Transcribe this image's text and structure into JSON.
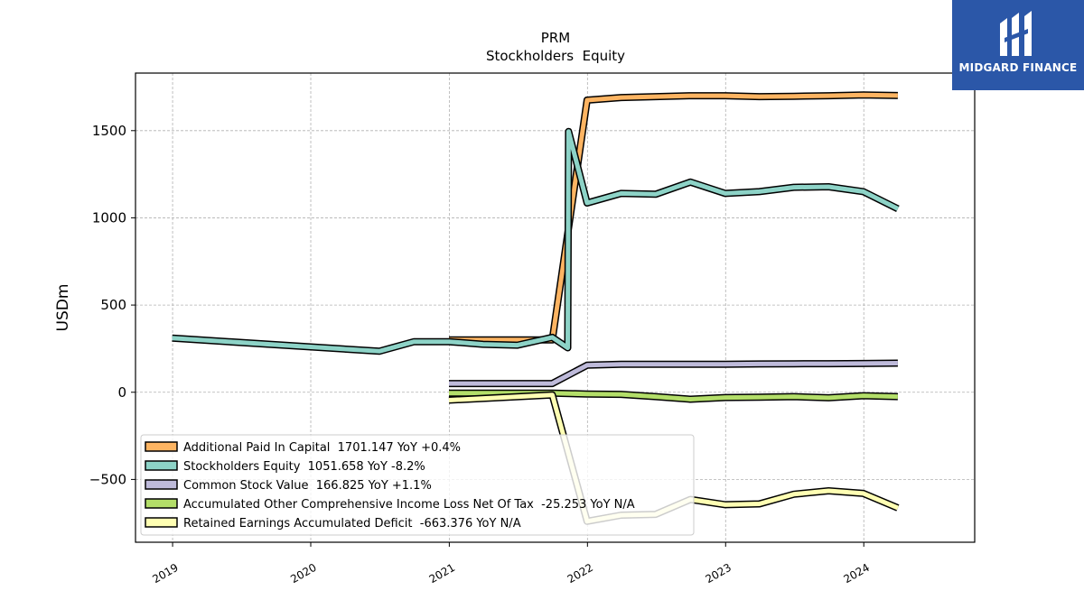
{
  "brand": {
    "name": "MIDGARD FINANCE",
    "logo_color": "#2b57a8"
  },
  "chart_data": {
    "type": "line",
    "title": "PRM",
    "subtitle": "Stockholders  Equity",
    "xlabel": "",
    "ylabel": "USDm",
    "ylim": [
      -860,
      1830
    ],
    "xlim": [
      "2018-09-25",
      "2024-10-20"
    ],
    "grid": true,
    "legend_position": "bottom-left",
    "x_ticks": [
      "2019",
      "2020",
      "2021",
      "2022",
      "2023",
      "2024"
    ],
    "y_ticks": [
      -500,
      0,
      500,
      1000,
      1500
    ],
    "series": [
      {
        "name": "Additional Paid In Capital  1701.147 YoY +0.4%",
        "color": "#fdb462",
        "points": [
          [
            "2020-12-31",
            300
          ],
          [
            "2021-09-30",
            300
          ],
          [
            "2021-12-31",
            1675
          ],
          [
            "2022-03-31",
            1690
          ],
          [
            "2022-06-30",
            1695
          ],
          [
            "2022-09-30",
            1700
          ],
          [
            "2022-12-31",
            1700
          ],
          [
            "2023-03-31",
            1695
          ],
          [
            "2023-06-30",
            1697
          ],
          [
            "2023-09-30",
            1700
          ],
          [
            "2023-12-31",
            1705
          ],
          [
            "2024-03-31",
            1701
          ]
        ]
      },
      {
        "name": "Stockholders Equity  1051.658 YoY -8.2%",
        "color": "#8dd3c7",
        "points": [
          [
            "2018-12-31",
            310
          ],
          [
            "2020-06-30",
            235
          ],
          [
            "2020-09-30",
            290
          ],
          [
            "2020-12-31",
            290
          ],
          [
            "2021-03-31",
            275
          ],
          [
            "2021-06-30",
            270
          ],
          [
            "2021-09-30",
            315
          ],
          [
            "2021-11-10",
            255
          ],
          [
            "2021-11-12",
            1495
          ],
          [
            "2021-12-31",
            1085
          ],
          [
            "2022-03-31",
            1140
          ],
          [
            "2022-06-30",
            1135
          ],
          [
            "2022-09-30",
            1205
          ],
          [
            "2022-12-31",
            1140
          ],
          [
            "2023-03-31",
            1150
          ],
          [
            "2023-06-30",
            1175
          ],
          [
            "2023-09-30",
            1178
          ],
          [
            "2023-12-31",
            1150
          ],
          [
            "2024-03-31",
            1052
          ]
        ]
      },
      {
        "name": "Common Stock Value  166.825 YoY +1.1%",
        "color": "#bebada",
        "points": [
          [
            "2020-12-31",
            50
          ],
          [
            "2021-09-30",
            50
          ],
          [
            "2021-12-31",
            155
          ],
          [
            "2022-03-31",
            160
          ],
          [
            "2022-06-30",
            160
          ],
          [
            "2022-09-30",
            160
          ],
          [
            "2022-12-31",
            160
          ],
          [
            "2023-03-31",
            162
          ],
          [
            "2023-06-30",
            163
          ],
          [
            "2023-09-30",
            164
          ],
          [
            "2023-12-31",
            165
          ],
          [
            "2024-03-31",
            167
          ]
        ]
      },
      {
        "name": "Accumulated Other Comprehensive Income Loss Net Of Tax  -25.253 YoY N/A",
        "color": "#b3de69",
        "points": [
          [
            "2020-12-31",
            -5
          ],
          [
            "2021-09-30",
            -5
          ],
          [
            "2021-12-31",
            -10
          ],
          [
            "2022-03-31",
            -12
          ],
          [
            "2022-06-30",
            -25
          ],
          [
            "2022-09-30",
            -40
          ],
          [
            "2022-12-31",
            -30
          ],
          [
            "2023-03-31",
            -28
          ],
          [
            "2023-06-30",
            -25
          ],
          [
            "2023-09-30",
            -32
          ],
          [
            "2023-12-31",
            -20
          ],
          [
            "2024-03-31",
            -25
          ]
        ]
      },
      {
        "name": "Retained Earnings Accumulated Deficit  -663.376 YoY N/A",
        "color": "#ffffb3",
        "points": [
          [
            "2020-12-31",
            -45
          ],
          [
            "2021-09-30",
            -15
          ],
          [
            "2021-12-31",
            -740
          ],
          [
            "2022-03-31",
            -705
          ],
          [
            "2022-06-30",
            -700
          ],
          [
            "2022-09-30",
            -615
          ],
          [
            "2022-12-31",
            -645
          ],
          [
            "2023-03-31",
            -640
          ],
          [
            "2023-06-30",
            -585
          ],
          [
            "2023-09-30",
            -565
          ],
          [
            "2023-12-31",
            -580
          ],
          [
            "2024-03-31",
            -663
          ]
        ]
      }
    ]
  }
}
